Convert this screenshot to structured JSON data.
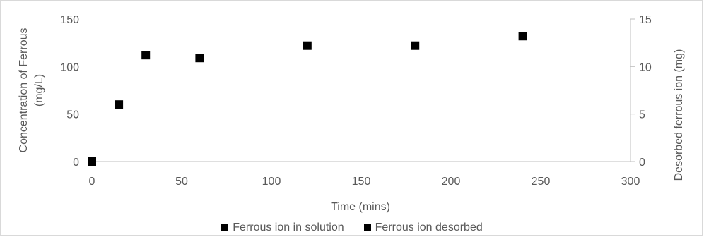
{
  "chart_data": {
    "type": "scatter",
    "title": "",
    "xlabel": "Time (mins)",
    "ylabel": "Concentration of Ferrous (mg/L)",
    "ylabel_lines": [
      "Concentration of Ferrous",
      "(mg/L)"
    ],
    "y2label": "Desorbed ferrous ion (mg)",
    "xlim": [
      0,
      300
    ],
    "ylim": [
      0,
      150
    ],
    "y2lim": [
      0,
      15
    ],
    "x_ticks": [
      0,
      50,
      100,
      150,
      200,
      250,
      300
    ],
    "y_ticks": [
      0,
      50,
      100,
      150
    ],
    "y2_ticks": [
      0,
      5,
      10,
      15
    ],
    "grid": false,
    "legend_position": "bottom",
    "marker_color": "#000000",
    "series": [
      {
        "name": "Ferrous ion in solution",
        "axis": "left",
        "x": [
          0,
          15,
          30,
          60,
          120,
          180,
          240
        ],
        "y": [
          0,
          60,
          112,
          109,
          122,
          122,
          132
        ]
      },
      {
        "name": "Ferrous ion desorbed",
        "axis": "right",
        "x": [
          0,
          15,
          30,
          60,
          120,
          180,
          240
        ],
        "y": [
          0,
          6.0,
          11.2,
          10.9,
          12.2,
          12.2,
          13.2
        ]
      }
    ]
  }
}
